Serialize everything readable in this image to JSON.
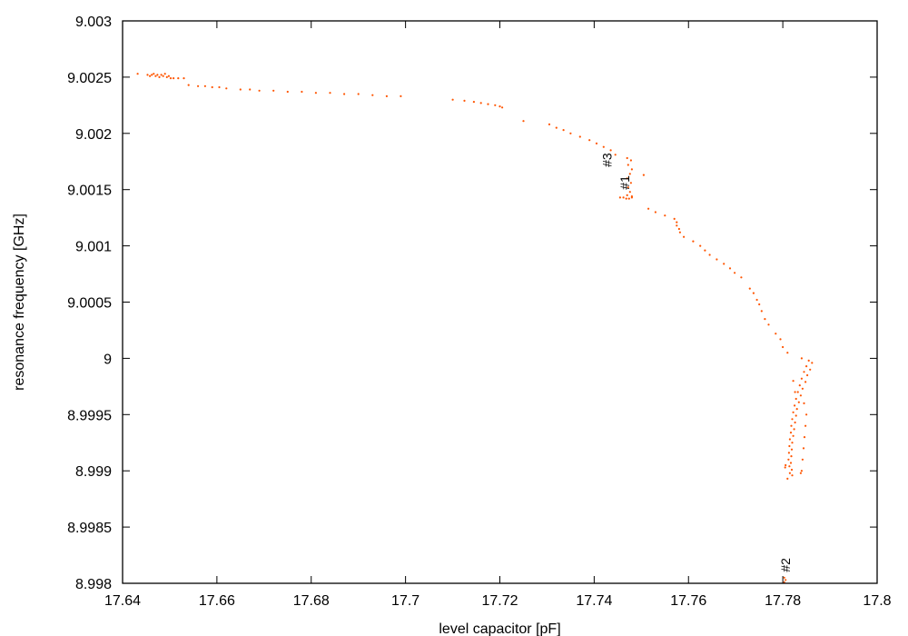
{
  "chart_data": {
    "type": "scatter",
    "title": "",
    "xlabel": "level capacitor [pF]",
    "ylabel": "resonance frequency [GHz]",
    "xlim": [
      17.64,
      17.8
    ],
    "ylim": [
      8.998,
      9.003
    ],
    "x_ticks": [
      "17.64",
      "17.66",
      "17.68",
      "17.7",
      "17.72",
      "17.74",
      "17.76",
      "17.78",
      "17.8"
    ],
    "y_ticks": [
      "8.998",
      "8.9985",
      "8.999",
      "8.9995",
      "9",
      "9.0005",
      "9.001",
      "9.0015",
      "9.002",
      "9.0025",
      "9.003"
    ],
    "grid": false,
    "legend": "none",
    "marker_color": "#ff5500",
    "annotations": [
      {
        "text": "#1",
        "x": 17.7474,
        "y": 9.0015
      },
      {
        "text": "#2",
        "x": 17.7815,
        "y": 8.9981
      },
      {
        "text": "#3",
        "x": 17.7437,
        "y": 9.0017
      }
    ],
    "series": [
      {
        "points": [
          [
            17.6432,
            9.00253
          ],
          [
            17.6453,
            9.00252
          ],
          [
            17.6458,
            9.00251
          ],
          [
            17.6462,
            9.00252
          ],
          [
            17.6466,
            9.00253
          ],
          [
            17.647,
            9.00251
          ],
          [
            17.6474,
            9.00252
          ],
          [
            17.6478,
            9.0025
          ],
          [
            17.6482,
            9.00252
          ],
          [
            17.6486,
            9.00251
          ],
          [
            17.649,
            9.00253
          ],
          [
            17.6494,
            9.0025
          ],
          [
            17.6498,
            9.00251
          ],
          [
            17.6502,
            9.00249
          ],
          [
            17.6508,
            9.00249
          ],
          [
            17.6518,
            9.00249
          ],
          [
            17.653,
            9.00249
          ],
          [
            17.654,
            9.00243
          ],
          [
            17.656,
            9.00242
          ],
          [
            17.6575,
            9.00242
          ],
          [
            17.659,
            9.00241
          ],
          [
            17.6605,
            9.00241
          ],
          [
            17.662,
            9.0024
          ],
          [
            17.665,
            9.00239
          ],
          [
            17.667,
            9.00239
          ],
          [
            17.669,
            9.00238
          ],
          [
            17.672,
            9.00238
          ],
          [
            17.675,
            9.00237
          ],
          [
            17.678,
            9.00237
          ],
          [
            17.681,
            9.00236
          ],
          [
            17.684,
            9.00236
          ],
          [
            17.687,
            9.00235
          ],
          [
            17.69,
            9.00235
          ],
          [
            17.693,
            9.00234
          ],
          [
            17.696,
            9.00233
          ],
          [
            17.699,
            9.00233
          ],
          [
            17.71,
            9.0023
          ],
          [
            17.7125,
            9.00229
          ],
          [
            17.7145,
            9.00228
          ],
          [
            17.716,
            9.00227
          ],
          [
            17.7175,
            9.00226
          ],
          [
            17.719,
            9.00225
          ],
          [
            17.72,
            9.00224
          ],
          [
            17.7205,
            9.00223
          ],
          [
            17.725,
            9.00211
          ],
          [
            17.7305,
            9.00208
          ],
          [
            17.732,
            9.00205
          ],
          [
            17.7335,
            9.00203
          ],
          [
            17.735,
            9.002
          ],
          [
            17.737,
            9.00197
          ],
          [
            17.739,
            9.00194
          ],
          [
            17.7405,
            9.00191
          ],
          [
            17.742,
            9.00188
          ],
          [
            17.7435,
            9.00185
          ],
          [
            17.7445,
            9.00181
          ],
          [
            17.747,
            9.00178
          ],
          [
            17.7478,
            9.00176
          ],
          [
            17.7472,
            9.00172
          ],
          [
            17.748,
            9.00168
          ],
          [
            17.7476,
            9.00164
          ],
          [
            17.747,
            9.0016
          ],
          [
            17.7478,
            9.00156
          ],
          [
            17.7472,
            9.00152
          ],
          [
            17.7476,
            9.00148
          ],
          [
            17.747,
            9.00145
          ],
          [
            17.748,
            9.00144
          ],
          [
            17.7455,
            9.00143
          ],
          [
            17.7462,
            9.00143
          ],
          [
            17.7468,
            9.00142
          ],
          [
            17.7474,
            9.00142
          ],
          [
            17.748,
            9.00143
          ],
          [
            17.7505,
            9.00163
          ],
          [
            17.7515,
            9.00133
          ],
          [
            17.753,
            9.0013
          ],
          [
            17.755,
            9.00127
          ],
          [
            17.757,
            9.00124
          ],
          [
            17.7575,
            9.00121
          ],
          [
            17.7575,
            9.00118
          ],
          [
            17.758,
            9.00115
          ],
          [
            17.7582,
            9.00112
          ],
          [
            17.759,
            9.00108
          ],
          [
            17.761,
            9.00104
          ],
          [
            17.7625,
            9.001
          ],
          [
            17.7635,
            9.00096
          ],
          [
            17.7645,
            9.00092
          ],
          [
            17.766,
            9.00088
          ],
          [
            17.7675,
            9.00084
          ],
          [
            17.7688,
            9.0008
          ],
          [
            17.7698,
            9.00076
          ],
          [
            17.7712,
            9.00072
          ],
          [
            17.773,
            9.00062
          ],
          [
            17.7738,
            9.00058
          ],
          [
            17.7745,
            9.00052
          ],
          [
            17.775,
            9.00048
          ],
          [
            17.7755,
            9.00042
          ],
          [
            17.7762,
            9.00035
          ],
          [
            17.777,
            9.0003
          ],
          [
            17.7785,
            9.00022
          ],
          [
            17.7795,
            9.00017
          ],
          [
            17.78,
            9.0001
          ],
          [
            17.781,
            9.00005
          ],
          [
            17.784,
            9.0
          ],
          [
            17.7855,
            8.99998
          ],
          [
            17.7862,
            8.99996
          ],
          [
            17.785,
            8.99993
          ],
          [
            17.7858,
            8.9999
          ],
          [
            17.7845,
            8.99988
          ],
          [
            17.7852,
            8.99985
          ],
          [
            17.784,
            8.99982
          ],
          [
            17.7848,
            8.99979
          ],
          [
            17.7836,
            8.99976
          ],
          [
            17.7842,
            8.99973
          ],
          [
            17.7832,
            8.9997
          ],
          [
            17.7838,
            8.99967
          ],
          [
            17.7828,
            8.99964
          ],
          [
            17.7834,
            8.99961
          ],
          [
            17.7825,
            8.99958
          ],
          [
            17.783,
            8.99955
          ],
          [
            17.7822,
            8.99952
          ],
          [
            17.7828,
            8.99949
          ],
          [
            17.782,
            8.99946
          ],
          [
            17.7826,
            8.99943
          ],
          [
            17.7818,
            8.9994
          ],
          [
            17.7824,
            8.99937
          ],
          [
            17.7817,
            8.99934
          ],
          [
            17.7822,
            8.99931
          ],
          [
            17.7815,
            8.99928
          ],
          [
            17.782,
            8.99925
          ],
          [
            17.7814,
            8.99922
          ],
          [
            17.7819,
            8.99919
          ],
          [
            17.7813,
            8.99916
          ],
          [
            17.7818,
            8.99913
          ],
          [
            17.7812,
            8.9991
          ],
          [
            17.7817,
            8.99907
          ],
          [
            17.7814,
            8.99904
          ],
          [
            17.7819,
            8.99901
          ],
          [
            17.7815,
            8.99898
          ],
          [
            17.782,
            8.99896
          ],
          [
            17.781,
            8.99893
          ],
          [
            17.7822,
            8.9998
          ],
          [
            17.7826,
            8.9997
          ],
          [
            17.7845,
            8.9996
          ],
          [
            17.785,
            8.9995
          ],
          [
            17.7848,
            8.9994
          ],
          [
            17.7846,
            8.9993
          ],
          [
            17.7844,
            8.9992
          ],
          [
            17.7842,
            8.9991
          ],
          [
            17.784,
            8.999
          ],
          [
            17.7838,
            8.99898
          ],
          [
            17.7805,
            8.99903
          ],
          [
            17.7806,
            8.99905
          ],
          [
            17.7803,
            8.99805
          ],
          [
            17.7806,
            8.99803
          ],
          [
            17.7803,
            8.99801
          ]
        ]
      }
    ]
  }
}
